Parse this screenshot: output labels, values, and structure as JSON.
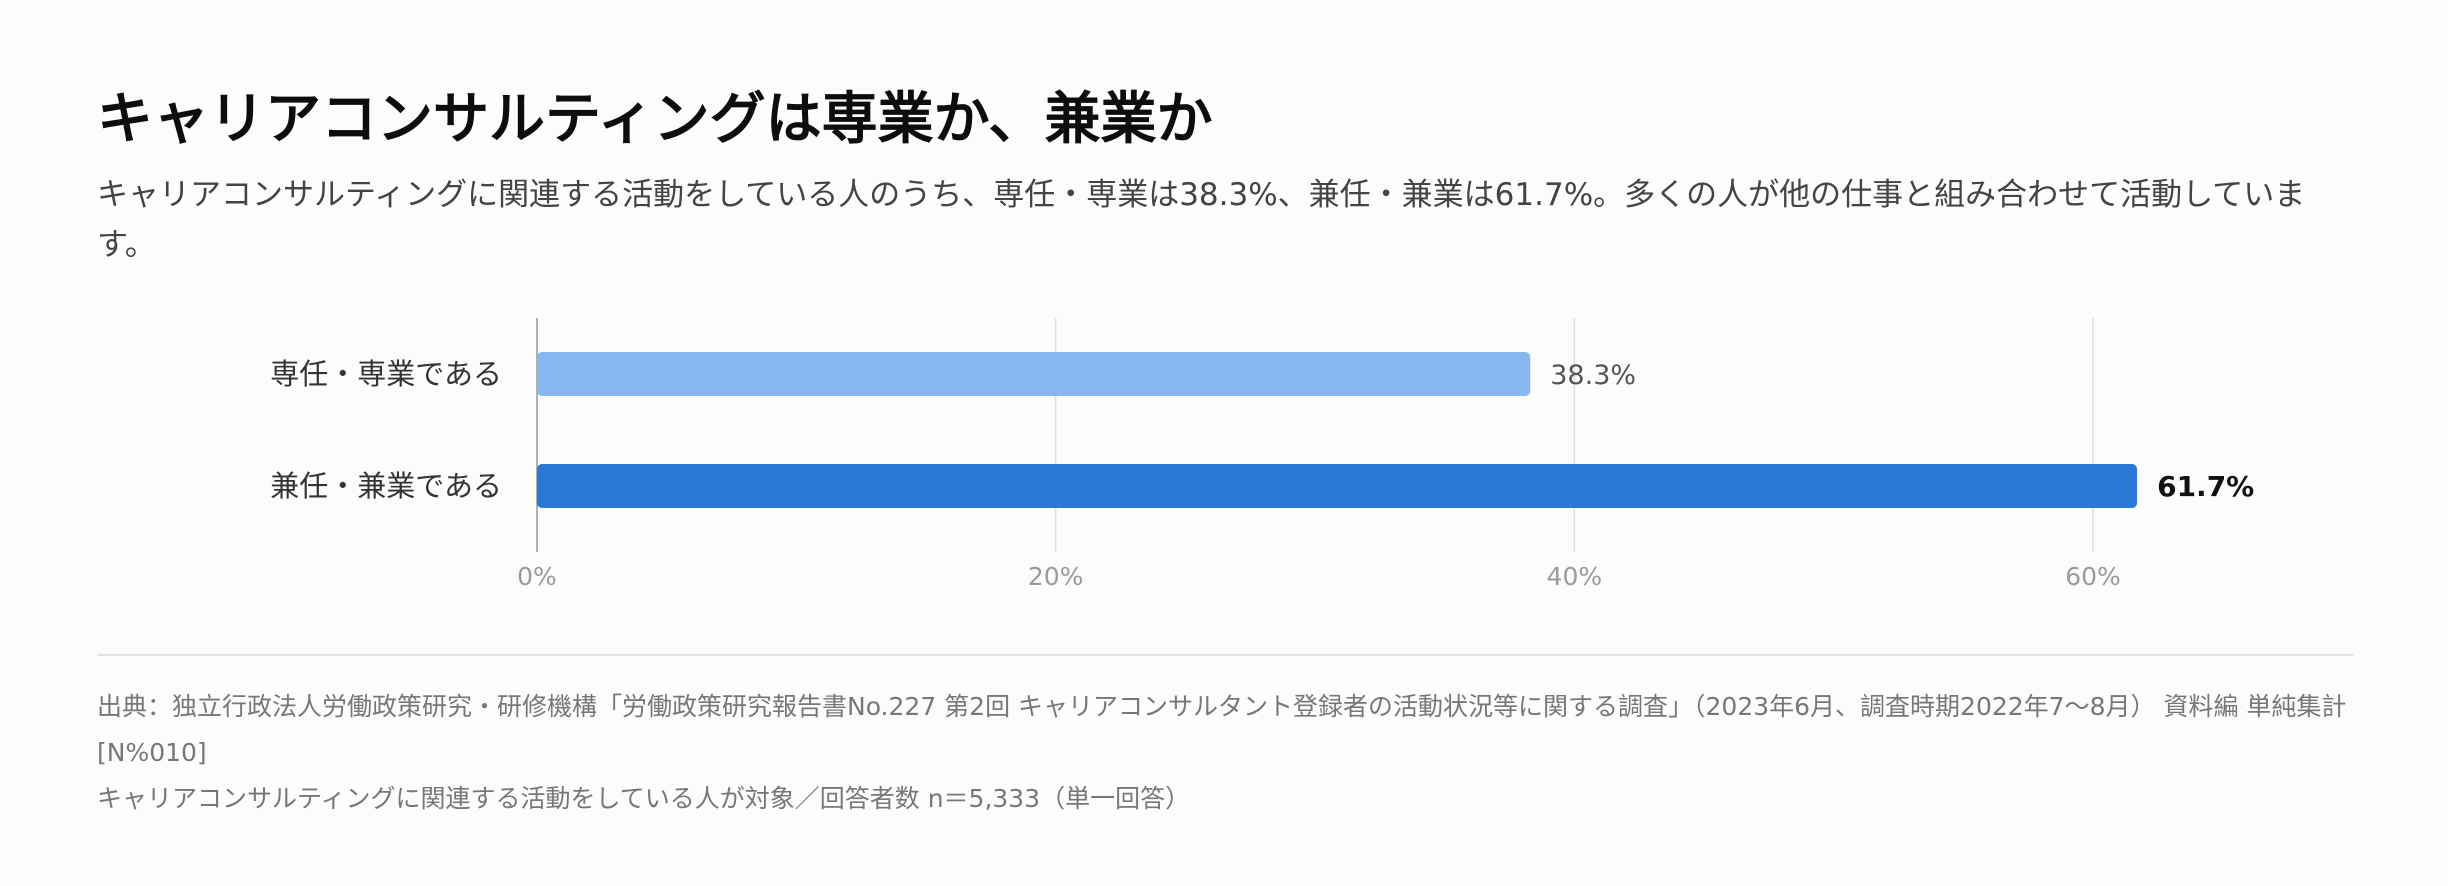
{
  "title": "キャリアコンサルティングは専業か、兼業か",
  "subtitle": "キャリアコンサルティングに関連する活動をしている人のうち、専任・専業は38.3%、兼任・兼業は61.7%。多くの人が他の仕事と組み合わせて活動しています。",
  "source": "出典：独立行政法人労働政策研究・研修機構「労働政策研究報告書No.227 第2回 キャリアコンサルタント登録者の活動状況等に関する調査」（2023年6月、調査時期2022年7〜8月） 資料編 単純集計 [N%010]",
  "note": "キャリアコンサルティングに関連する活動をしている人が対象／回答者数 n＝5,333（単一回答）",
  "colors": {
    "bar_light": "#88b6ee",
    "bar_dark": "#2a79d6",
    "grid": "#dedede",
    "axis": "#b0b0b0"
  },
  "chart_data": {
    "type": "bar",
    "orientation": "horizontal",
    "categories": [
      "専任・専業である",
      "兼任・兼業である"
    ],
    "values": [
      38.3,
      61.7
    ],
    "value_labels": [
      "38.3%",
      "61.7%"
    ],
    "xlim": [
      0,
      70
    ],
    "xticks": [
      0,
      20,
      40,
      60
    ],
    "xtick_labels": [
      "0%",
      "20%",
      "40%",
      "60%"
    ],
    "grid": true,
    "legend": "none"
  }
}
